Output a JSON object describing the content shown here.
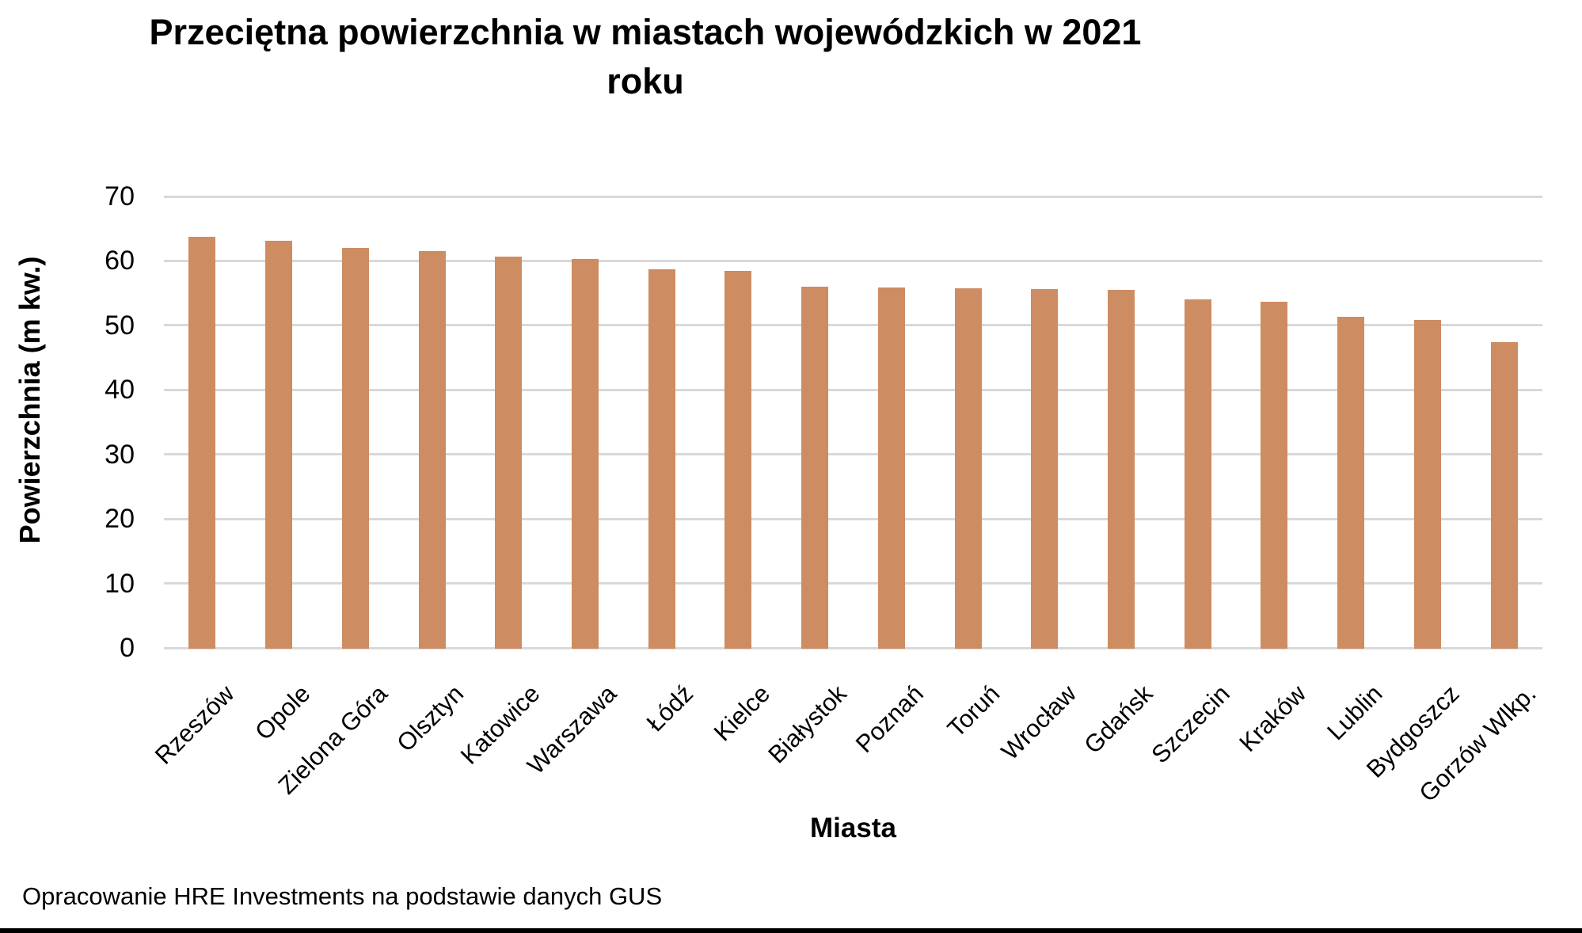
{
  "title": {
    "text": "Przeciętna powierzchnia w miastach wojewódzkich w 2021 roku",
    "lines": [
      "Przeciętna powierzchnia w miastach wojewódzkich w 2021",
      "roku"
    ]
  },
  "footer": "Opracowanie HRE Investments na podstawie danych GUS",
  "colors": {
    "bar": "#CD8C62",
    "gridline": "#D9D9D9",
    "text": "#000000",
    "bottom_rule": "#000000",
    "background": "#FFFFFF"
  },
  "chart_data": {
    "type": "bar",
    "title": "Przeciętna powierzchnia w miastach wojewódzkich w 2021 roku",
    "categories": [
      "Rzeszów",
      "Opole",
      "Zielona Góra",
      "Olsztyn",
      "Katowice",
      "Warszawa",
      "Łódź",
      "Kielce",
      "Białystok",
      "Poznań",
      "Toruń",
      "Wrocław",
      "Gdańsk",
      "Szczecin",
      "Kraków",
      "Lublin",
      "Bydgoszcz",
      "Gorzów Wlkp."
    ],
    "values": [
      63.9,
      63.2,
      62.1,
      61.6,
      60.8,
      60.4,
      58.8,
      58.6,
      56.1,
      56.0,
      55.9,
      55.8,
      55.6,
      54.2,
      53.8,
      51.5,
      51.0,
      47.5
    ],
    "xlabel": "Miasta",
    "ylabel": "Powierzchnia (m kw.)",
    "ylim": [
      0,
      70
    ],
    "yticks": [
      0,
      10,
      20,
      30,
      40,
      50,
      60,
      70
    ],
    "grid": "horizontal",
    "legend": "none",
    "source_note": "Opracowanie HRE Investments na podstawie danych GUS"
  }
}
